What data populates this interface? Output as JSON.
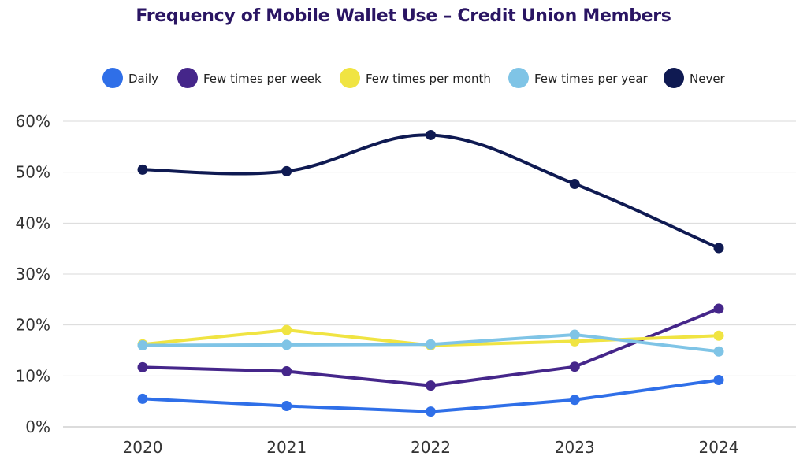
{
  "chart_data": {
    "type": "line",
    "title": "Frequency of Mobile Wallet Use – Credit Union Members",
    "xlabel": "",
    "ylabel": "",
    "categories": [
      "2020",
      "2021",
      "2022",
      "2023",
      "2024"
    ],
    "ylim": [
      0,
      60
    ],
    "yticks": [
      "0%",
      "10%",
      "20%",
      "30%",
      "40%",
      "50%",
      "60%"
    ],
    "grid": true,
    "legend_position": "top",
    "series": [
      {
        "name": "Daily",
        "color": "#2f6fe8",
        "values": [
          5.5,
          4.1,
          3.0,
          5.3,
          9.2
        ]
      },
      {
        "name": "Few times per week",
        "color": "#45268a",
        "values": [
          11.7,
          10.9,
          8.1,
          11.8,
          23.2
        ]
      },
      {
        "name": "Few times per month",
        "color": "#f0e442",
        "values": [
          16.2,
          19.0,
          16.0,
          16.8,
          17.9
        ]
      },
      {
        "name": "Few times per year",
        "color": "#7fc4e6",
        "values": [
          16.0,
          16.1,
          16.2,
          18.1,
          14.8
        ]
      },
      {
        "name": "Never",
        "color": "#0f1a52",
        "values": [
          50.5,
          50.2,
          57.3,
          47.7,
          35.1
        ]
      }
    ]
  }
}
